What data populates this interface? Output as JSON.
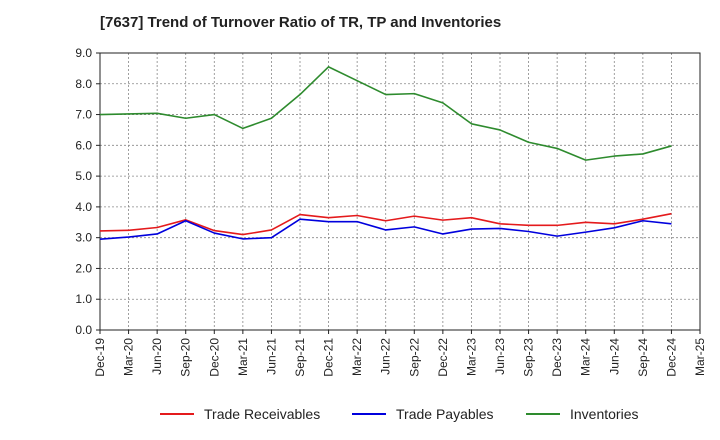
{
  "chart_data": {
    "type": "line",
    "title": "[7637]  Trend of Turnover Ratio of TR, TP and Inventories",
    "xlabel": "",
    "ylabel": "",
    "ylim": [
      0,
      9
    ],
    "y_ticks": [
      "0.0",
      "1.0",
      "2.0",
      "3.0",
      "4.0",
      "5.0",
      "6.0",
      "7.0",
      "8.0",
      "9.0"
    ],
    "x_tick_labels": [
      "Dec-19",
      "Mar-20",
      "Jun-20",
      "Sep-20",
      "Dec-20",
      "Mar-21",
      "Jun-21",
      "Sep-21",
      "Dec-21",
      "Mar-22",
      "Jun-22",
      "Sep-22",
      "Dec-22",
      "Mar-23",
      "Jun-23",
      "Sep-23",
      "Dec-23",
      "Mar-24",
      "Jun-24",
      "Sep-24",
      "Dec-24",
      "Mar-25"
    ],
    "x": [
      "Dec-19",
      "Mar-20",
      "Jun-20",
      "Sep-20",
      "Dec-20",
      "Mar-21",
      "Jun-21",
      "Sep-21",
      "Dec-21",
      "Mar-22",
      "Jun-22",
      "Sep-22",
      "Dec-22",
      "Mar-23",
      "Jun-23",
      "Sep-23",
      "Dec-23",
      "Mar-24",
      "Jun-24",
      "Sep-24",
      "Dec-24"
    ],
    "grid": "dashed, both axes",
    "legend_position": "bottom",
    "series": [
      {
        "name": "Trade Receivables",
        "color": "#e41a1c",
        "values": [
          3.22,
          3.24,
          3.33,
          3.58,
          3.23,
          3.1,
          3.25,
          3.75,
          3.65,
          3.72,
          3.55,
          3.7,
          3.57,
          3.65,
          3.45,
          3.4,
          3.4,
          3.5,
          3.45,
          3.6,
          3.78
        ]
      },
      {
        "name": "Trade Payables",
        "color": "#0000dd",
        "values": [
          2.95,
          3.02,
          3.12,
          3.55,
          3.15,
          2.96,
          3.0,
          3.6,
          3.52,
          3.52,
          3.25,
          3.35,
          3.12,
          3.28,
          3.3,
          3.2,
          3.05,
          3.18,
          3.32,
          3.55,
          3.45
        ]
      },
      {
        "name": "Inventories",
        "color": "#2e8b2e",
        "values": [
          7.0,
          7.02,
          7.04,
          6.88,
          7.0,
          6.55,
          6.88,
          7.65,
          8.55,
          8.1,
          7.65,
          7.68,
          7.38,
          6.7,
          6.5,
          6.1,
          5.9,
          5.52,
          5.65,
          5.72,
          5.98
        ]
      }
    ]
  }
}
